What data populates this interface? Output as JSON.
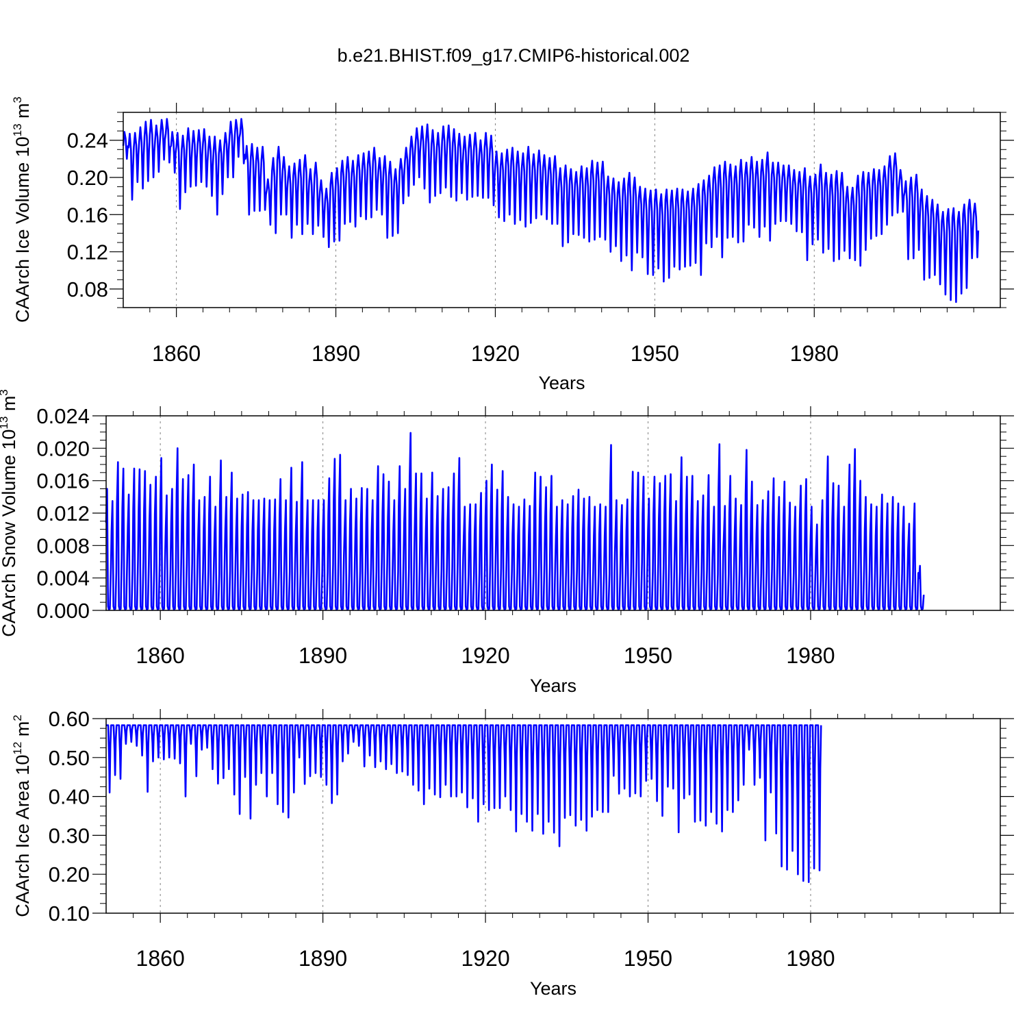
{
  "title": "b.e21.BHIST.f09_g17.CMIP6-historical.002",
  "chart_data": [
    {
      "type": "line",
      "id": "ice-volume",
      "ylabel_main": "CAArch Ice Volume 10",
      "ylabel_exp": "13",
      "ylabel_unit": " m",
      "ylabel_unit_exp": "3",
      "xlabel": "Years",
      "xlim": [
        1850,
        2015
      ],
      "ylim": [
        0.06,
        0.27
      ],
      "yticks": [
        0.08,
        0.12,
        0.16,
        0.2,
        0.24
      ],
      "ytick_labels": [
        "0.08",
        "0.12",
        "0.16",
        "0.20",
        "0.24"
      ],
      "xticks": [
        1860,
        1890,
        1920,
        1950,
        1980
      ],
      "xtick_labels": [
        "1860",
        "1890",
        "1920",
        "1950",
        "1980"
      ],
      "color": "#0000ff",
      "series": [
        {
          "name": "CAArch Ice Volume",
          "annual_max": [
            0.249,
            0.247,
            0.248,
            0.254,
            0.26,
            0.262,
            0.256,
            0.262,
            0.263,
            0.249,
            0.248,
            0.245,
            0.253,
            0.25,
            0.251,
            0.252,
            0.244,
            0.244,
            0.24,
            0.248,
            0.26,
            0.262,
            0.263,
            0.234,
            0.236,
            0.232,
            0.233,
            0.198,
            0.221,
            0.233,
            0.222,
            0.212,
            0.215,
            0.219,
            0.224,
            0.209,
            0.216,
            0.197,
            0.188,
            0.205,
            0.21,
            0.218,
            0.222,
            0.218,
            0.224,
            0.226,
            0.228,
            0.232,
            0.221,
            0.223,
            0.217,
            0.209,
            0.22,
            0.232,
            0.244,
            0.253,
            0.255,
            0.257,
            0.251,
            0.248,
            0.255,
            0.256,
            0.252,
            0.247,
            0.244,
            0.246,
            0.248,
            0.24,
            0.248,
            0.245,
            0.228,
            0.226,
            0.23,
            0.232,
            0.228,
            0.226,
            0.233,
            0.225,
            0.229,
            0.224,
            0.221,
            0.223,
            0.21,
            0.213,
            0.209,
            0.206,
            0.212,
            0.21,
            0.218,
            0.216,
            0.217,
            0.201,
            0.199,
            0.195,
            0.199,
            0.205,
            0.2,
            0.19,
            0.188,
            0.186,
            0.187,
            0.182,
            0.187,
            0.186,
            0.188,
            0.187,
            0.185,
            0.188,
            0.193,
            0.197,
            0.202,
            0.211,
            0.213,
            0.217,
            0.214,
            0.212,
            0.219,
            0.216,
            0.222,
            0.217,
            0.219,
            0.227,
            0.216,
            0.216,
            0.213,
            0.213,
            0.208,
            0.206,
            0.21,
            0.201,
            0.203,
            0.214,
            0.205,
            0.203,
            0.207,
            0.205,
            0.19,
            0.189,
            0.202,
            0.206,
            0.205,
            0.209,
            0.208,
            0.212,
            0.223,
            0.226,
            0.208,
            0.196,
            0.2,
            0.203,
            0.187,
            0.18,
            0.176,
            0.171,
            0.163,
            0.166,
            0.167,
            0.163,
            0.171,
            0.176,
            0.172
          ],
          "annual_min": [
            0.22,
            0.176,
            0.195,
            0.188,
            0.196,
            0.2,
            0.206,
            0.219,
            0.216,
            0.205,
            0.166,
            0.184,
            0.19,
            0.191,
            0.195,
            0.19,
            0.18,
            0.16,
            0.182,
            0.2,
            0.2,
            0.222,
            0.215,
            0.16,
            0.164,
            0.164,
            0.165,
            0.149,
            0.14,
            0.16,
            0.16,
            0.135,
            0.149,
            0.139,
            0.15,
            0.139,
            0.148,
            0.136,
            0.125,
            0.131,
            0.132,
            0.15,
            0.152,
            0.147,
            0.158,
            0.155,
            0.157,
            0.165,
            0.16,
            0.135,
            0.137,
            0.14,
            0.172,
            0.18,
            0.192,
            0.2,
            0.188,
            0.173,
            0.18,
            0.183,
            0.189,
            0.179,
            0.175,
            0.183,
            0.176,
            0.179,
            0.18,
            0.178,
            0.178,
            0.17,
            0.157,
            0.153,
            0.16,
            0.15,
            0.154,
            0.147,
            0.151,
            0.156,
            0.16,
            0.155,
            0.15,
            0.15,
            0.126,
            0.13,
            0.139,
            0.138,
            0.135,
            0.131,
            0.133,
            0.136,
            0.133,
            0.12,
            0.126,
            0.11,
            0.116,
            0.1,
            0.119,
            0.114,
            0.096,
            0.095,
            0.102,
            0.088,
            0.092,
            0.104,
            0.101,
            0.104,
            0.105,
            0.108,
            0.095,
            0.129,
            0.125,
            0.136,
            0.114,
            0.135,
            0.136,
            0.13,
            0.131,
            0.149,
            0.146,
            0.136,
            0.147,
            0.132,
            0.15,
            0.153,
            0.153,
            0.15,
            0.142,
            0.141,
            0.111,
            0.128,
            0.133,
            0.119,
            0.123,
            0.11,
            0.112,
            0.121,
            0.113,
            0.111,
            0.105,
            0.122,
            0.134,
            0.137,
            0.139,
            0.149,
            0.159,
            0.162,
            0.163,
            0.112,
            0.113,
            0.122,
            0.09,
            0.092,
            0.095,
            0.085,
            0.074,
            0.068,
            0.066,
            0.075,
            0.081,
            0.113,
            0.114
          ]
        }
      ]
    },
    {
      "type": "line",
      "id": "snow-volume",
      "ylabel_main": "CAArch Snow Volume 10",
      "ylabel_exp": "13",
      "ylabel_unit": " m",
      "ylabel_unit_exp": "3",
      "xlabel": "Years",
      "xlim": [
        1850,
        2015
      ],
      "ylim": [
        0.0,
        0.024
      ],
      "yticks": [
        0.0,
        0.004,
        0.008,
        0.012,
        0.016,
        0.02,
        0.024
      ],
      "ytick_labels": [
        "0.000",
        "0.004",
        "0.008",
        "0.012",
        "0.016",
        "0.020",
        "0.024"
      ],
      "xticks": [
        1860,
        1890,
        1920,
        1950,
        1980
      ],
      "xtick_labels": [
        "1860",
        "1890",
        "1920",
        "1950",
        "1980"
      ],
      "color": "#0000ff",
      "series": [
        {
          "name": "CAArch Snow Volume",
          "annual_max": [
            0.015,
            0.0135,
            0.0183,
            0.0175,
            0.0143,
            0.0175,
            0.0174,
            0.0172,
            0.0155,
            0.0165,
            0.0188,
            0.0142,
            0.015,
            0.02,
            0.0162,
            0.0167,
            0.018,
            0.0136,
            0.014,
            0.0165,
            0.0128,
            0.0185,
            0.014,
            0.017,
            0.0138,
            0.0143,
            0.0146,
            0.0136,
            0.0136,
            0.0138,
            0.0136,
            0.0137,
            0.0162,
            0.0136,
            0.0176,
            0.0134,
            0.0183,
            0.0136,
            0.0136,
            0.0136,
            0.0136,
            0.0163,
            0.0187,
            0.0192,
            0.0136,
            0.015,
            0.0138,
            0.0151,
            0.015,
            0.0136,
            0.0178,
            0.0168,
            0.0159,
            0.0136,
            0.0178,
            0.015,
            0.0219,
            0.0169,
            0.0169,
            0.0138,
            0.017,
            0.0141,
            0.015,
            0.0152,
            0.0169,
            0.0188,
            0.0128,
            0.0131,
            0.0131,
            0.0145,
            0.016,
            0.018,
            0.0149,
            0.0172,
            0.014,
            0.0131,
            0.0128,
            0.0137,
            0.0129,
            0.017,
            0.0165,
            0.0152,
            0.0166,
            0.0128,
            0.0136,
            0.0131,
            0.0141,
            0.0149,
            0.0138,
            0.014,
            0.0128,
            0.0131,
            0.0128,
            0.0204,
            0.0136,
            0.013,
            0.0137,
            0.0171,
            0.017,
            0.0165,
            0.0138,
            0.0165,
            0.0157,
            0.0166,
            0.0168,
            0.0135,
            0.0189,
            0.0165,
            0.0166,
            0.0135,
            0.0142,
            0.0167,
            0.0128,
            0.0205,
            0.0129,
            0.0166,
            0.0138,
            0.013,
            0.0198,
            0.0159,
            0.013,
            0.0136,
            0.0147,
            0.0163,
            0.014,
            0.0159,
            0.0133,
            0.0128,
            0.0154,
            0.0162,
            0.0128,
            0.0106,
            0.0136,
            0.019,
            0.0157,
            0.0154,
            0.0128,
            0.018,
            0.0199,
            0.016,
            0.014,
            0.0131,
            0.0128,
            0.0143,
            0.0132,
            0.014,
            0.0132,
            0.0128,
            0.0107,
            0.0132,
            0.0055
          ]
        }
      ]
    },
    {
      "type": "line",
      "id": "ice-area",
      "ylabel_main": "CAArch Ice Area 10",
      "ylabel_exp": "12",
      "ylabel_unit": " m",
      "ylabel_unit_exp": "2",
      "xlabel": "Years",
      "xlim": [
        1850,
        2015
      ],
      "ylim": [
        0.1,
        0.6
      ],
      "yticks": [
        0.1,
        0.2,
        0.3,
        0.4,
        0.5,
        0.6
      ],
      "ytick_labels": [
        "0.10",
        "0.20",
        "0.30",
        "0.40",
        "0.50",
        "0.60"
      ],
      "xticks": [
        1860,
        1890,
        1920,
        1950,
        1980
      ],
      "xtick_labels": [
        "1860",
        "1890",
        "1920",
        "1950",
        "1980"
      ],
      "color": "#0000ff",
      "series": [
        {
          "name": "CAArch Ice Area",
          "annual_max_value": 0.583,
          "annual_min": [
            0.41,
            0.455,
            0.445,
            0.535,
            0.54,
            0.53,
            0.505,
            0.412,
            0.49,
            0.5,
            0.495,
            0.5,
            0.497,
            0.485,
            0.4,
            0.535,
            0.452,
            0.52,
            0.525,
            0.47,
            0.433,
            0.447,
            0.47,
            0.405,
            0.355,
            0.45,
            0.343,
            0.43,
            0.46,
            0.4,
            0.46,
            0.38,
            0.36,
            0.346,
            0.41,
            0.5,
            0.432,
            0.452,
            0.46,
            0.45,
            0.43,
            0.383,
            0.405,
            0.49,
            0.51,
            0.54,
            0.53,
            0.477,
            0.505,
            0.475,
            0.49,
            0.47,
            0.483,
            0.46,
            0.464,
            0.455,
            0.43,
            0.415,
            0.38,
            0.42,
            0.405,
            0.398,
            0.43,
            0.4,
            0.4,
            0.41,
            0.372,
            0.395,
            0.335,
            0.38,
            0.365,
            0.37,
            0.37,
            0.4,
            0.365,
            0.31,
            0.355,
            0.335,
            0.312,
            0.355,
            0.304,
            0.335,
            0.307,
            0.272,
            0.345,
            0.352,
            0.325,
            0.34,
            0.312,
            0.348,
            0.365,
            0.36,
            0.36,
            0.453,
            0.407,
            0.42,
            0.4,
            0.408,
            0.4,
            0.44,
            0.445,
            0.388,
            0.35,
            0.425,
            0.42,
            0.308,
            0.395,
            0.405,
            0.335,
            0.338,
            0.325,
            0.36,
            0.33,
            0.31,
            0.365,
            0.36,
            0.39,
            0.43,
            0.52,
            0.43,
            0.448,
            0.287,
            0.41,
            0.305,
            0.22,
            0.212,
            0.26,
            0.2,
            0.183,
            0.18,
            0.215,
            0.21
          ]
        }
      ]
    }
  ]
}
